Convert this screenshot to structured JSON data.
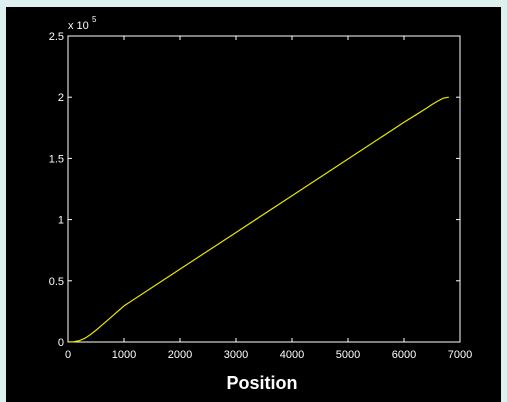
{
  "chart_data": {
    "type": "line",
    "title": "",
    "xlabel": "Position",
    "ylabel": "",
    "y_multiplier_label": "x 10",
    "y_multiplier_exponent": "5",
    "xlim": [
      0,
      7000
    ],
    "ylim": [
      0,
      250000
    ],
    "x_ticks": [
      0,
      1000,
      2000,
      3000,
      4000,
      5000,
      6000,
      7000
    ],
    "x_tick_labels": [
      "0",
      "1000",
      "2000",
      "3000",
      "4000",
      "5000",
      "6000",
      "7000"
    ],
    "y_ticks": [
      0,
      50000,
      100000,
      150000,
      200000,
      250000
    ],
    "y_tick_labels": [
      "0",
      "0.5",
      "1",
      "1.5",
      "2",
      "2.5"
    ],
    "grid": false,
    "series": [
      {
        "color": "#e6e600",
        "x": [
          0,
          100,
          200,
          300,
          400,
          500,
          600,
          800,
          1000,
          2000,
          3000,
          4000,
          5000,
          6000,
          6200,
          6400,
          6500,
          6600,
          6700,
          6800
        ],
        "y": [
          0,
          200,
          1100,
          3000,
          6000,
          9600,
          13500,
          21500,
          29500,
          59500,
          89500,
          119500,
          149500,
          179500,
          185200,
          191000,
          194000,
          196800,
          199200,
          200000
        ]
      }
    ]
  },
  "colors": {
    "background": "#dcf0ef",
    "plot_background": "#000000",
    "axes": "#ffffff",
    "line": "#e6e600"
  }
}
